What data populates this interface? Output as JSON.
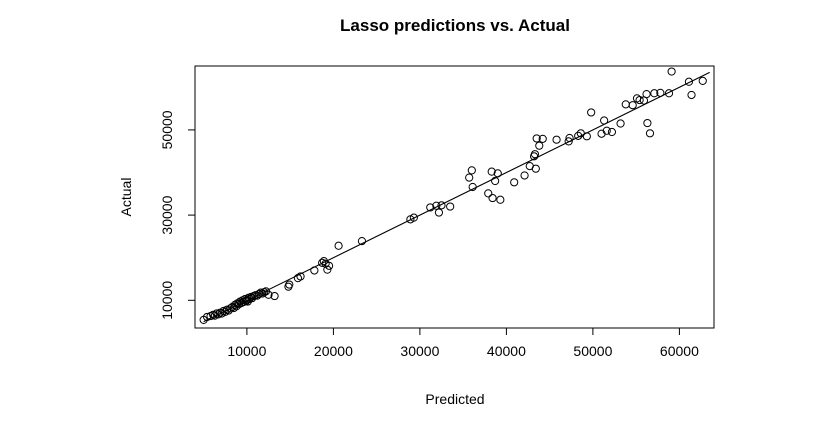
{
  "chart_data": {
    "type": "scatter",
    "title": "Lasso predictions vs. Actual",
    "xlabel": "Predicted",
    "ylabel": "Actual",
    "xlim": [
      4000,
      64000
    ],
    "ylim": [
      3500,
      65000
    ],
    "xticks": [
      10000,
      20000,
      30000,
      40000,
      50000,
      60000
    ],
    "xtick_labels": [
      "10000",
      "20000",
      "30000",
      "40000",
      "50000",
      "60000"
    ],
    "yticks": [
      10000,
      30000,
      50000
    ],
    "ytick_labels": [
      "10000",
      "30000",
      "50000"
    ],
    "grid": false,
    "legend": "none",
    "reference_line": {
      "slope": 1,
      "intercept": 0,
      "from": 5000,
      "to": 63500
    },
    "colors": {
      "points": "#000000",
      "line": "#000000",
      "background": "#ffffff"
    },
    "points": [
      [
        5000,
        5400
      ],
      [
        5400,
        6100
      ],
      [
        5800,
        6300
      ],
      [
        6100,
        6600
      ],
      [
        6300,
        6400
      ],
      [
        6500,
        6900
      ],
      [
        6700,
        6700
      ],
      [
        6900,
        7100
      ],
      [
        7100,
        6900
      ],
      [
        7300,
        7500
      ],
      [
        7500,
        7300
      ],
      [
        7700,
        7800
      ],
      [
        7900,
        7600
      ],
      [
        8100,
        8100
      ],
      [
        8300,
        8400
      ],
      [
        8500,
        8200
      ],
      [
        8600,
        8900
      ],
      [
        8800,
        8600
      ],
      [
        8900,
        9300
      ],
      [
        9100,
        9100
      ],
      [
        9200,
        9700
      ],
      [
        9400,
        9400
      ],
      [
        9500,
        10000
      ],
      [
        9600,
        9600
      ],
      [
        9800,
        10300
      ],
      [
        9900,
        9800
      ],
      [
        10000,
        10100
      ],
      [
        10100,
        9700
      ],
      [
        10200,
        10600
      ],
      [
        10300,
        10300
      ],
      [
        10500,
        10800
      ],
      [
        10600,
        10500
      ],
      [
        10800,
        11000
      ],
      [
        11000,
        11200
      ],
      [
        11200,
        11100
      ],
      [
        11400,
        11500
      ],
      [
        11600,
        11800
      ],
      [
        11800,
        11600
      ],
      [
        12000,
        11900
      ],
      [
        12200,
        12100
      ],
      [
        12500,
        11300
      ],
      [
        13200,
        11000
      ],
      [
        14800,
        13200
      ],
      [
        14900,
        13700
      ],
      [
        15900,
        15200
      ],
      [
        16200,
        15600
      ],
      [
        17800,
        17000
      ],
      [
        18700,
        18800
      ],
      [
        18900,
        19200
      ],
      [
        19100,
        18600
      ],
      [
        19300,
        17200
      ],
      [
        19500,
        18100
      ],
      [
        20600,
        22800
      ],
      [
        23300,
        23900
      ],
      [
        28900,
        29000
      ],
      [
        29300,
        29400
      ],
      [
        31200,
        31800
      ],
      [
        31900,
        32200
      ],
      [
        32200,
        30600
      ],
      [
        32500,
        32300
      ],
      [
        33500,
        32000
      ],
      [
        35700,
        38800
      ],
      [
        36000,
        40500
      ],
      [
        36100,
        36600
      ],
      [
        37900,
        35100
      ],
      [
        38300,
        40200
      ],
      [
        38400,
        34000
      ],
      [
        38700,
        38000
      ],
      [
        39000,
        39800
      ],
      [
        39300,
        33600
      ],
      [
        40900,
        37700
      ],
      [
        42100,
        39300
      ],
      [
        42700,
        41500
      ],
      [
        43200,
        43800
      ],
      [
        43300,
        44300
      ],
      [
        43400,
        40900
      ],
      [
        43500,
        48000
      ],
      [
        43800,
        46300
      ],
      [
        44200,
        47900
      ],
      [
        45800,
        47700
      ],
      [
        47200,
        47300
      ],
      [
        47300,
        48100
      ],
      [
        48300,
        48600
      ],
      [
        48600,
        49200
      ],
      [
        49300,
        48500
      ],
      [
        49800,
        54100
      ],
      [
        51000,
        49100
      ],
      [
        51300,
        52200
      ],
      [
        51600,
        49800
      ],
      [
        52200,
        49500
      ],
      [
        53200,
        51500
      ],
      [
        53800,
        56000
      ],
      [
        54600,
        55800
      ],
      [
        55100,
        57400
      ],
      [
        55400,
        57000
      ],
      [
        55900,
        56900
      ],
      [
        56200,
        58400
      ],
      [
        56300,
        51600
      ],
      [
        56600,
        49200
      ],
      [
        57100,
        58600
      ],
      [
        57800,
        58700
      ],
      [
        58800,
        58600
      ],
      [
        59100,
        63700
      ],
      [
        61100,
        61300
      ],
      [
        61400,
        58200
      ],
      [
        62700,
        61500
      ]
    ]
  }
}
